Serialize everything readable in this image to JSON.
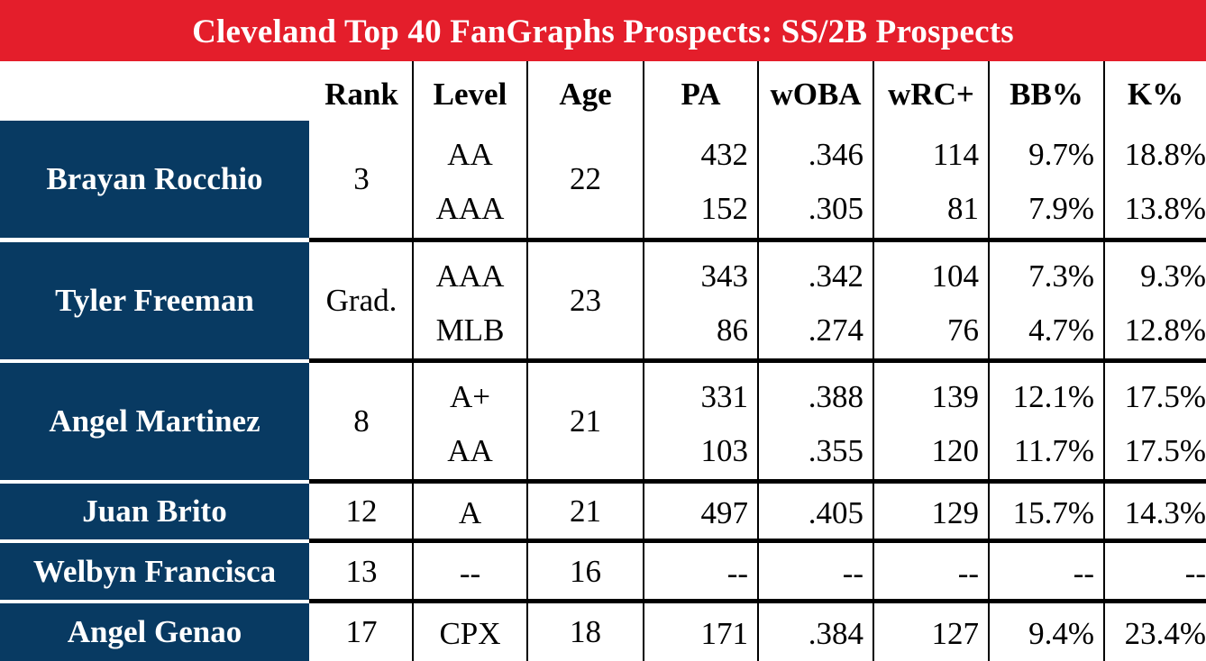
{
  "title": "Cleveland Top 40 FanGraphs Prospects: SS/2B Prospects",
  "colors": {
    "title_bg": "#e41e2b",
    "name_bg": "#083a62",
    "text": "#000000"
  },
  "headers": {
    "rank": "Rank",
    "level": "Level",
    "age": "Age",
    "pa": "PA",
    "woba": "wOBA",
    "wrc": "wRC+",
    "bb": "BB%",
    "k": "K%"
  },
  "players": [
    {
      "name": "Brayan Rocchio",
      "rank": "3",
      "age": "22",
      "lines": [
        {
          "level": "AA",
          "pa": "432",
          "woba": ".346",
          "wrc": "114",
          "bb": "9.7%",
          "k": "18.8%"
        },
        {
          "level": "AAA",
          "pa": "152",
          "woba": ".305",
          "wrc": "81",
          "bb": "7.9%",
          "k": "13.8%"
        }
      ]
    },
    {
      "name": "Tyler Freeman",
      "rank": "Grad.",
      "age": "23",
      "lines": [
        {
          "level": "AAA",
          "pa": "343",
          "woba": ".342",
          "wrc": "104",
          "bb": "7.3%",
          "k": "9.3%"
        },
        {
          "level": "MLB",
          "pa": "86",
          "woba": ".274",
          "wrc": "76",
          "bb": "4.7%",
          "k": "12.8%"
        }
      ]
    },
    {
      "name": "Angel Martinez",
      "rank": "8",
      "age": "21",
      "lines": [
        {
          "level": "A+",
          "pa": "331",
          "woba": ".388",
          "wrc": "139",
          "bb": "12.1%",
          "k": "17.5%"
        },
        {
          "level": "AA",
          "pa": "103",
          "woba": ".355",
          "wrc": "120",
          "bb": "11.7%",
          "k": "17.5%"
        }
      ]
    },
    {
      "name": "Juan Brito",
      "rank": "12",
      "age": "21",
      "lines": [
        {
          "level": "A",
          "pa": "497",
          "woba": ".405",
          "wrc": "129",
          "bb": "15.7%",
          "k": "14.3%"
        }
      ]
    },
    {
      "name": "Welbyn Francisca",
      "rank": "13",
      "age": "16",
      "lines": [
        {
          "level": "--",
          "pa": "--",
          "woba": "--",
          "wrc": "--",
          "bb": "--",
          "k": "--"
        }
      ]
    },
    {
      "name": "Angel Genao",
      "rank": "17",
      "age": "18",
      "lines": [
        {
          "level": "CPX",
          "pa": "171",
          "woba": ".384",
          "wrc": "127",
          "bb": "9.4%",
          "k": "23.4%"
        }
      ]
    }
  ]
}
